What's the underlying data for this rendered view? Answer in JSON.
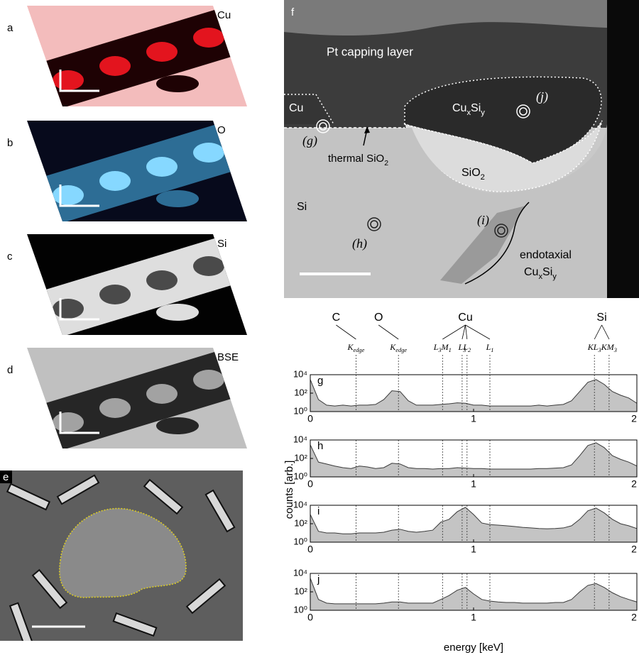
{
  "left_panels": [
    {
      "letter": "a",
      "label": "Cu"
    },
    {
      "letter": "b",
      "label": "O"
    },
    {
      "letter": "c",
      "label": "Si"
    },
    {
      "letter": "d",
      "label": "BSE"
    }
  ],
  "panel_e": {
    "letter": "e"
  },
  "panel_f": {
    "letter": "f",
    "pt_layer": "Pt capping layer",
    "cu": "Cu",
    "g_point": "(g)",
    "thermal_oxide": [
      "thermal SiO",
      "2"
    ],
    "cuxsiy": [
      "Cu",
      "x",
      "Si",
      "y"
    ],
    "j_point": "(j)",
    "sio2": [
      "SiO",
      "2"
    ],
    "si": "Si",
    "h_point": "(h)",
    "i_point": "(i)",
    "endotaxial": "endotaxial",
    "endotaxial_phase": [
      "Cu",
      "x",
      "Si",
      "y"
    ]
  },
  "spectra_axes": {
    "ylabel": "counts [arb.]",
    "xlabel": "energy [keV]"
  },
  "element_lines": [
    {
      "element": "C",
      "lines": [
        {
          "parts": [
            "K",
            "edge"
          ],
          "energy": 0.28
        }
      ]
    },
    {
      "element": "O",
      "lines": [
        {
          "parts": [
            "K",
            "edge"
          ],
          "energy": 0.54
        }
      ]
    },
    {
      "element": "Cu",
      "lines": [
        {
          "parts": [
            "L",
            "3",
            "M",
            "1"
          ],
          "energy": 0.81
        },
        {
          "parts": [
            "L",
            "3"
          ],
          "energy": 0.93
        },
        {
          "parts": [
            "L",
            "2"
          ],
          "energy": 0.96
        },
        {
          "parts": [
            "L",
            "1"
          ],
          "energy": 1.1
        }
      ]
    },
    {
      "element": "Si",
      "lines": [
        {
          "parts": [
            "KL",
            "3"
          ],
          "energy": 1.74
        },
        {
          "parts": [
            "KM",
            "3"
          ],
          "energy": 1.83
        }
      ]
    }
  ],
  "chart_data": [
    {
      "type": "area",
      "label": "g",
      "yscale": "log",
      "color": "#c4c4c4",
      "x": [
        0,
        0.05,
        0.1,
        0.15,
        0.2,
        0.25,
        0.3,
        0.35,
        0.4,
        0.45,
        0.5,
        0.55,
        0.6,
        0.65,
        0.7,
        0.75,
        0.8,
        0.85,
        0.9,
        0.95,
        1,
        1.05,
        1.1,
        1.15,
        1.2,
        1.25,
        1.3,
        1.35,
        1.4,
        1.45,
        1.5,
        1.55,
        1.6,
        1.65,
        1.7,
        1.75,
        1.8,
        1.85,
        1.9,
        1.95,
        2
      ],
      "values": [
        3000,
        20,
        5,
        4,
        5,
        4,
        5,
        5,
        6,
        20,
        180,
        150,
        15,
        5,
        5,
        5,
        6,
        7,
        9,
        8,
        5,
        5,
        4,
        4,
        4,
        4,
        4,
        4,
        5,
        4,
        5,
        6,
        15,
        150,
        1500,
        3000,
        900,
        150,
        60,
        30,
        8
      ],
      "xlim": [
        0,
        2
      ],
      "xticks": [
        0,
        1,
        2
      ],
      "ylim": [
        1,
        10000
      ],
      "yticks": [
        {
          "value": 1,
          "label": "10⁰"
        },
        {
          "value": 100,
          "label": "10²"
        },
        {
          "value": 10000,
          "label": "10⁴"
        }
      ]
    },
    {
      "type": "area",
      "label": "h",
      "yscale": "log",
      "color": "#c4c4c4",
      "x": [
        0,
        0.05,
        0.1,
        0.15,
        0.2,
        0.25,
        0.3,
        0.35,
        0.4,
        0.45,
        0.5,
        0.55,
        0.6,
        0.65,
        0.7,
        0.75,
        0.8,
        0.85,
        0.9,
        0.95,
        1,
        1.05,
        1.1,
        1.15,
        1.2,
        1.25,
        1.3,
        1.35,
        1.4,
        1.45,
        1.5,
        1.55,
        1.6,
        1.65,
        1.7,
        1.75,
        1.8,
        1.85,
        1.9,
        1.95,
        2
      ],
      "values": [
        3000,
        40,
        25,
        15,
        10,
        8,
        15,
        12,
        8,
        10,
        30,
        25,
        10,
        8,
        8,
        7,
        8,
        8,
        10,
        9,
        8,
        8,
        7,
        7,
        7,
        7,
        7,
        7,
        8,
        8,
        9,
        10,
        20,
        200,
        2500,
        5000,
        1500,
        200,
        80,
        40,
        15
      ],
      "xlim": [
        0,
        2
      ],
      "xticks": [
        0,
        1,
        2
      ],
      "ylim": [
        1,
        10000
      ],
      "yticks": [
        {
          "value": 1,
          "label": "10⁰"
        },
        {
          "value": 100,
          "label": "10²"
        },
        {
          "value": 10000,
          "label": "10⁴"
        }
      ]
    },
    {
      "type": "area",
      "label": "i",
      "yscale": "log",
      "color": "#c4c4c4",
      "x": [
        0,
        0.05,
        0.1,
        0.15,
        0.2,
        0.25,
        0.3,
        0.35,
        0.4,
        0.45,
        0.5,
        0.55,
        0.6,
        0.65,
        0.7,
        0.75,
        0.8,
        0.85,
        0.9,
        0.95,
        1,
        1.05,
        1.1,
        1.15,
        1.2,
        1.25,
        1.3,
        1.35,
        1.4,
        1.45,
        1.5,
        1.55,
        1.6,
        1.65,
        1.7,
        1.75,
        1.8,
        1.85,
        1.9,
        1.95,
        2
      ],
      "values": [
        1000,
        15,
        10,
        10,
        8,
        8,
        10,
        10,
        10,
        12,
        20,
        25,
        15,
        12,
        15,
        20,
        150,
        300,
        2000,
        6000,
        1000,
        120,
        80,
        70,
        60,
        50,
        40,
        35,
        30,
        28,
        30,
        35,
        60,
        300,
        2500,
        5000,
        1500,
        300,
        100,
        60,
        30
      ],
      "xlim": [
        0,
        2
      ],
      "xticks": [
        0,
        1,
        2
      ],
      "ylim": [
        1,
        10000
      ],
      "yticks": [
        {
          "value": 1,
          "label": "10⁰"
        },
        {
          "value": 100,
          "label": "10²"
        },
        {
          "value": 10000,
          "label": "10⁴"
        }
      ]
    },
    {
      "type": "area",
      "label": "j",
      "yscale": "log",
      "color": "#c4c4c4",
      "x": [
        0,
        0.05,
        0.1,
        0.15,
        0.2,
        0.25,
        0.3,
        0.35,
        0.4,
        0.45,
        0.5,
        0.55,
        0.6,
        0.65,
        0.7,
        0.75,
        0.8,
        0.85,
        0.9,
        0.95,
        1,
        1.05,
        1.1,
        1.15,
        1.2,
        1.25,
        1.3,
        1.35,
        1.4,
        1.45,
        1.5,
        1.55,
        1.6,
        1.65,
        1.7,
        1.75,
        1.8,
        1.85,
        1.9,
        1.95,
        2
      ],
      "values": [
        3000,
        15,
        6,
        5,
        5,
        5,
        5,
        5,
        5,
        6,
        8,
        8,
        6,
        6,
        6,
        6,
        15,
        40,
        150,
        300,
        60,
        15,
        10,
        8,
        7,
        7,
        6,
        6,
        6,
        6,
        7,
        7,
        15,
        100,
        500,
        800,
        300,
        80,
        30,
        15,
        8
      ],
      "xlim": [
        0,
        2
      ],
      "xticks": [
        0,
        1,
        2
      ],
      "ylim": [
        1,
        10000
      ],
      "yticks": [
        {
          "value": 1,
          "label": "10⁰"
        },
        {
          "value": 100,
          "label": "10²"
        },
        {
          "value": 10000,
          "label": "10⁴"
        }
      ]
    }
  ]
}
